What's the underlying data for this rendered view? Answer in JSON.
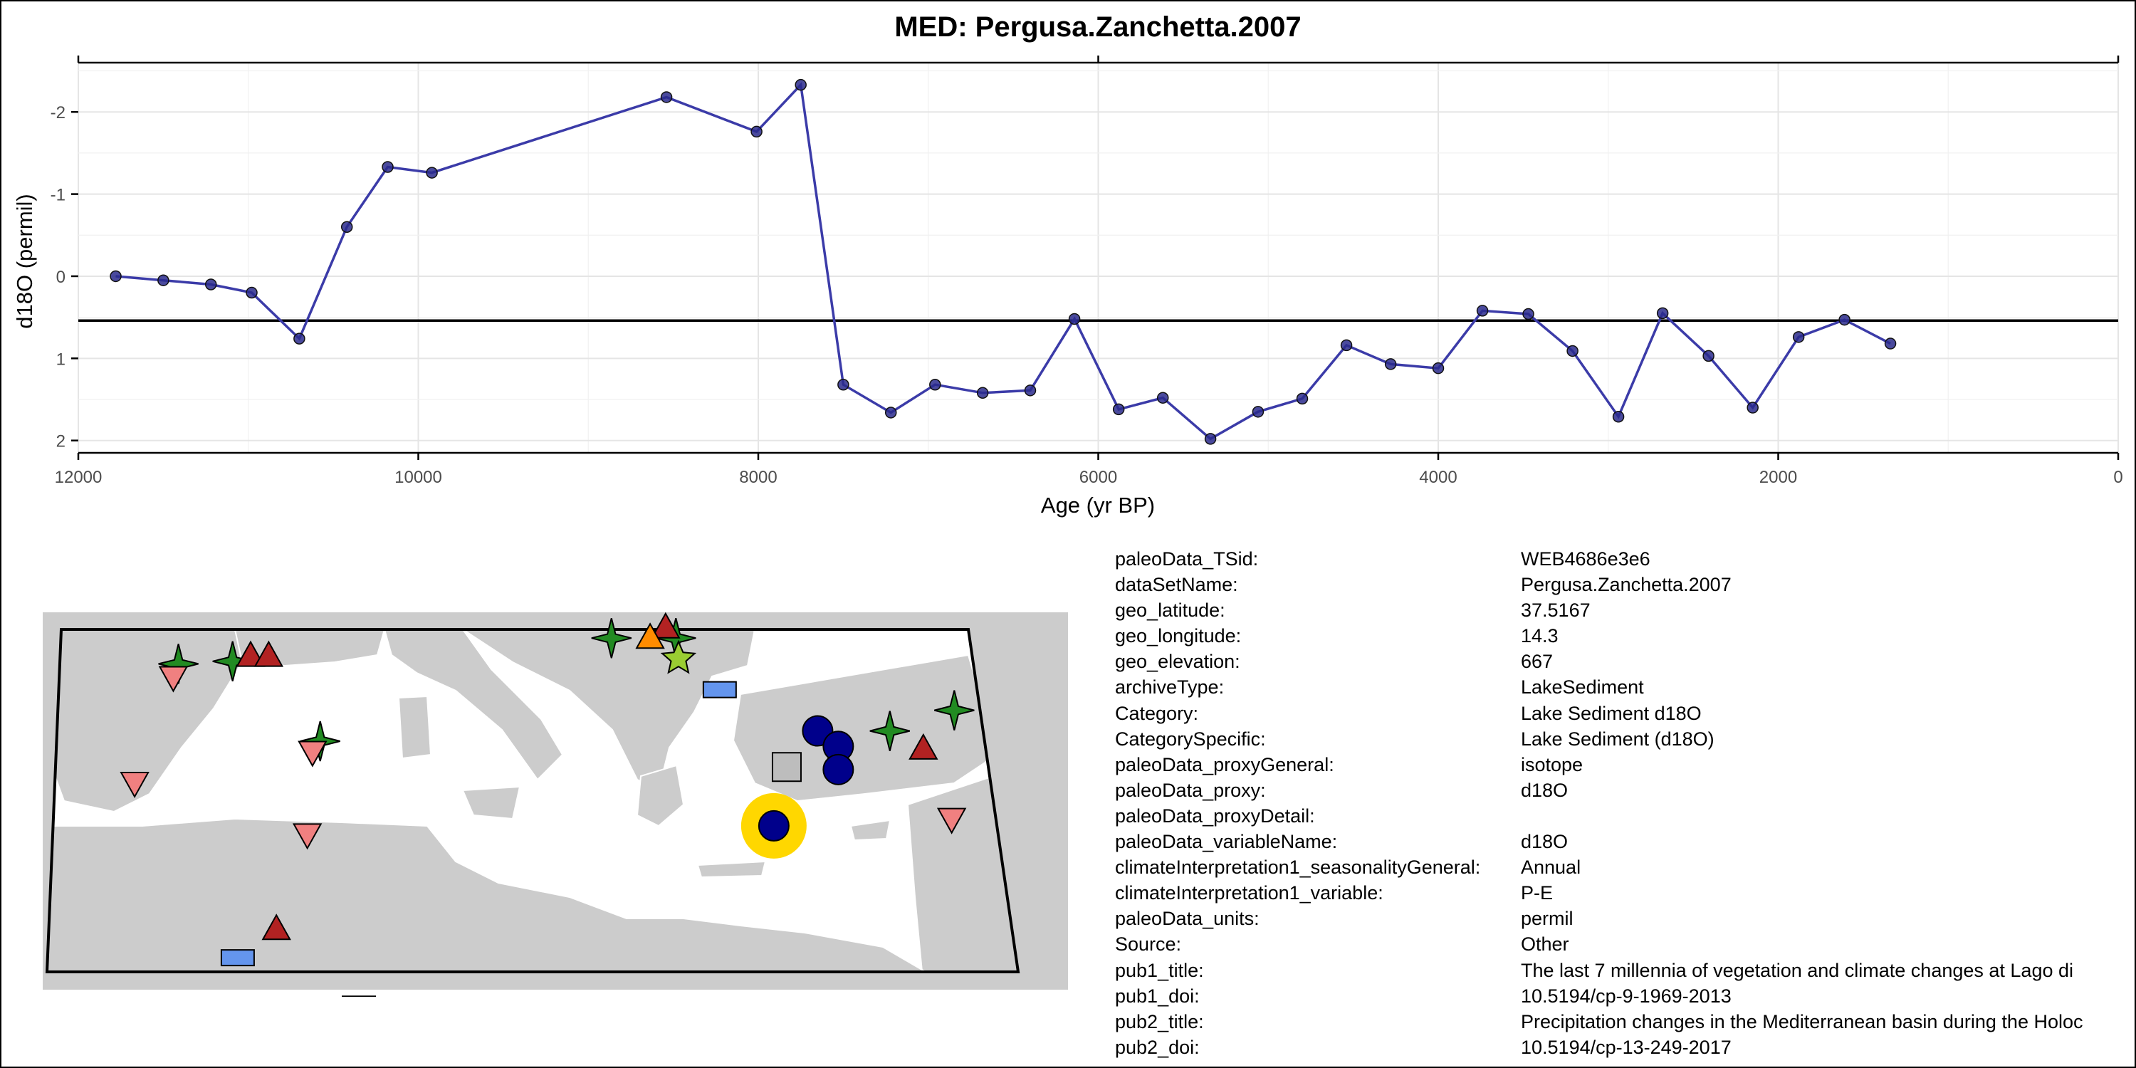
{
  "chart_data": {
    "type": "line",
    "title": "MED: Pergusa.Zanchetta.2007",
    "xlabel": "Age (yr BP)",
    "ylabel": "d18O (permil)",
    "x_reversed": true,
    "y_reversed": true,
    "xlim": [
      12000,
      0
    ],
    "ylim": [
      2.15,
      -2.6
    ],
    "x_ticks": [
      "12000",
      "10000",
      "8000",
      "6000",
      "4000",
      "2000",
      "0"
    ],
    "y_ticks": [
      "-2",
      "-1",
      "0",
      "1",
      "2"
    ],
    "grid": true,
    "reference_line_y": 0.54,
    "series_color": "#3b3ba8",
    "point_color": "#2a2a8c",
    "series": [
      {
        "x": [
          11780,
          11500,
          11220,
          10980,
          10700,
          10420,
          10180,
          9920,
          8540,
          8010,
          7750,
          7500,
          7220,
          6960,
          6680,
          6400,
          6140,
          5880,
          5620,
          5340,
          5060,
          4800,
          4540,
          4280,
          4000,
          3740,
          3470,
          3210,
          2940,
          2680,
          2410,
          2150,
          1880,
          1610,
          1340
        ],
        "y": [
          0.0,
          0.05,
          0.1,
          0.2,
          0.76,
          -0.6,
          -1.33,
          -1.26,
          -2.18,
          -1.76,
          -2.33,
          1.32,
          1.66,
          1.32,
          1.42,
          1.39,
          0.52,
          1.62,
          1.48,
          1.98,
          1.65,
          1.49,
          0.84,
          1.07,
          1.12,
          0.42,
          0.46,
          0.91,
          1.71,
          0.45,
          0.97,
          1.6,
          0.74,
          0.53,
          0.82
        ]
      }
    ]
  },
  "metadata": [
    {
      "key": "paleoData_TSid:",
      "value": "WEB4686e3e6"
    },
    {
      "key": "dataSetName:",
      "value": "Pergusa.Zanchetta.2007"
    },
    {
      "key": "geo_latitude:",
      "value": "37.5167"
    },
    {
      "key": "geo_longitude:",
      "value": "14.3"
    },
    {
      "key": "geo_elevation:",
      "value": "667"
    },
    {
      "key": "archiveType:",
      "value": "LakeSediment"
    },
    {
      "key": "Category:",
      "value": "Lake Sediment d18O"
    },
    {
      "key": "CategorySpecific:",
      "value": "Lake Sediment (d18O)"
    },
    {
      "key": "paleoData_proxyGeneral:",
      "value": "isotope"
    },
    {
      "key": "paleoData_proxy:",
      "value": "d18O"
    },
    {
      "key": "paleoData_proxyDetail:",
      "value": ""
    },
    {
      "key": "paleoData_variableName:",
      "value": "d18O"
    },
    {
      "key": "climateInterpretation1_seasonalityGeneral:",
      "value": "Annual"
    },
    {
      "key": "climateInterpretation1_variable:",
      "value": "P-E"
    },
    {
      "key": "paleoData_units:",
      "value": "permil"
    },
    {
      "key": "Source:",
      "value": "Other"
    },
    {
      "key": "pub1_title:",
      "value": "The last 7 millennia of vegetation and climate changes at Lago di"
    },
    {
      "key": "pub1_doi:",
      "value": "10.5194/cp-9-1969-2013"
    },
    {
      "key": "pub2_title:",
      "value": "Precipitation changes in the Mediterranean basin during the Holoc"
    },
    {
      "key": "pub2_doi:",
      "value": "10.5194/cp-13-249-2017"
    }
  ],
  "map": {
    "land_color": "#cccccc",
    "sea_color": "#ffffff",
    "highlight_color": "#ffd700",
    "highlight_site": {
      "shape": "circle",
      "color": "#00008b",
      "lat": 37.5167,
      "lon": 14.3
    },
    "sites": [
      {
        "shape": "circle",
        "color": "#00008b",
        "lat": 41.2,
        "lon": 16.0
      },
      {
        "shape": "circle",
        "color": "#00008b",
        "lat": 40.6,
        "lon": 16.8
      },
      {
        "shape": "circle",
        "color": "#00008b",
        "lat": 39.7,
        "lon": 16.8
      },
      {
        "shape": "circle",
        "color": "#00008b",
        "lat": 36.8,
        "lon": 28.3
      },
      {
        "shape": "circle",
        "color": "#00008b",
        "lat": 38.2,
        "lon": 31.6
      },
      {
        "shape": "star4",
        "color": "#228b22",
        "lat": 43.8,
        "lon": -8.8
      },
      {
        "shape": "star4",
        "color": "#228b22",
        "lat": 43.9,
        "lon": -6.7
      },
      {
        "shape": "star4",
        "color": "#228b22",
        "lat": 40.8,
        "lon": -3.3
      },
      {
        "shape": "star4",
        "color": "#228b22",
        "lat": 44.8,
        "lon": 8.0
      },
      {
        "shape": "star4",
        "color": "#228b22",
        "lat": 44.8,
        "lon": 10.5
      },
      {
        "shape": "star4",
        "color": "#228b22",
        "lat": 41.2,
        "lon": 18.8
      },
      {
        "shape": "star4",
        "color": "#228b22",
        "lat": 42.0,
        "lon": 21.3
      },
      {
        "shape": "star4",
        "color": "#228b22",
        "lat": 36.7,
        "lon": 27.5
      },
      {
        "shape": "triangle",
        "color": "#b22222",
        "lat": 44.1,
        "lon": -6.0
      },
      {
        "shape": "triangle",
        "color": "#b22222",
        "lat": 44.1,
        "lon": -5.3
      },
      {
        "shape": "triangle",
        "color": "#b22222",
        "lat": 45.2,
        "lon": 10.1
      },
      {
        "shape": "triangle",
        "color": "#b22222",
        "lat": 40.5,
        "lon": 20.1
      },
      {
        "shape": "triangle",
        "color": "#b22222",
        "lat": 40.5,
        "lon": 41.0
      },
      {
        "shape": "triangle",
        "color": "#b22222",
        "lat": 33.5,
        "lon": -5.0
      },
      {
        "shape": "triangle",
        "color": "#b22222",
        "lat": 31.4,
        "lon": 35.5
      },
      {
        "shape": "triangle-down",
        "color": "#f08080",
        "lat": 43.3,
        "lon": -9.0
      },
      {
        "shape": "triangle-down",
        "color": "#f08080",
        "lat": 40.4,
        "lon": -3.6
      },
      {
        "shape": "triangle-down",
        "color": "#f08080",
        "lat": 39.2,
        "lon": -10.5
      },
      {
        "shape": "triangle-down",
        "color": "#f08080",
        "lat": 37.2,
        "lon": -3.8
      },
      {
        "shape": "triangle-down",
        "color": "#f08080",
        "lat": 37.8,
        "lon": 21.2
      },
      {
        "shape": "triangle-down",
        "color": "#f08080",
        "lat": 33.2,
        "lon": 35.5
      },
      {
        "shape": "square",
        "color": "#6495ed",
        "lat": 42.8,
        "lon": 12.2
      },
      {
        "shape": "square",
        "color": "#6495ed",
        "lat": 32.4,
        "lon": -6.5
      },
      {
        "shape": "square",
        "color": "#6495ed",
        "lat": 30.6,
        "lon": -1.8
      },
      {
        "shape": "square",
        "color": "#6495ed",
        "lat": 31.2,
        "lon": 35.7
      },
      {
        "shape": "square",
        "color": "#bdbdbd",
        "lat": 39.8,
        "lon": 14.8
      },
      {
        "shape": "triangle",
        "color": "#ff8c00",
        "lat": 44.8,
        "lon": 9.5
      },
      {
        "shape": "star5",
        "color": "#9acd32",
        "lat": 44.0,
        "lon": 10.6
      }
    ]
  }
}
